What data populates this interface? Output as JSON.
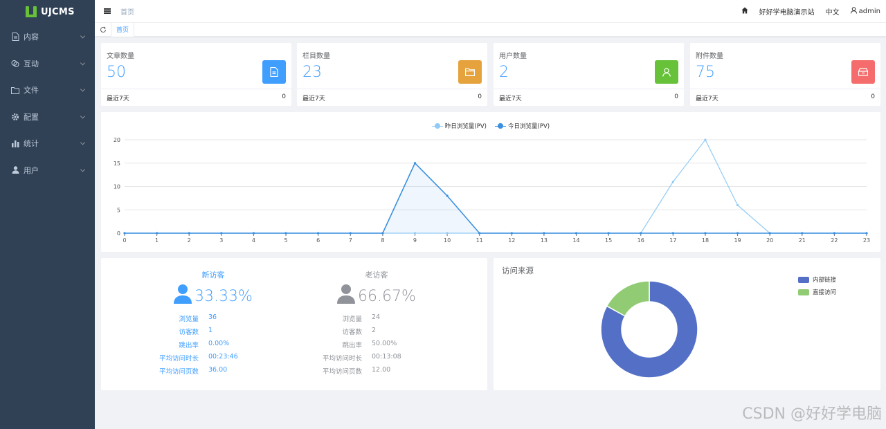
{
  "app": {
    "brand": "UJCMS"
  },
  "sidebar": {
    "items": [
      {
        "label": "内容",
        "icon": "document-icon"
      },
      {
        "label": "互动",
        "icon": "chat-icon"
      },
      {
        "label": "文件",
        "icon": "folder-icon"
      },
      {
        "label": "配置",
        "icon": "gear-icon"
      },
      {
        "label": "统计",
        "icon": "bar-chart-icon"
      },
      {
        "label": "用户",
        "icon": "user-icon"
      }
    ]
  },
  "header": {
    "breadcrumb": "首页",
    "site_name": "好好学电脑演示站",
    "language": "中文",
    "username": "admin"
  },
  "tabs": {
    "active": "首页"
  },
  "stats": [
    {
      "title": "文章数量",
      "value": "50",
      "footer_label": "最近7天",
      "footer_value": "0",
      "color": "#409eff",
      "icon": "document-icon"
    },
    {
      "title": "栏目数量",
      "value": "23",
      "footer_label": "最近7天",
      "footer_value": "0",
      "color": "#e6a23c",
      "icon": "folder-icon"
    },
    {
      "title": "用户数量",
      "value": "2",
      "footer_label": "最近7天",
      "footer_value": "0",
      "color": "#67c23a",
      "icon": "user-icon"
    },
    {
      "title": "附件数量",
      "value": "75",
      "footer_label": "最近7天",
      "footer_value": "0",
      "color": "#f56c6c",
      "icon": "box-icon"
    }
  ],
  "chart_data": [
    {
      "type": "line",
      "x": [
        "0",
        "1",
        "2",
        "3",
        "4",
        "5",
        "6",
        "7",
        "8",
        "9",
        "10",
        "11",
        "12",
        "13",
        "14",
        "15",
        "16",
        "17",
        "18",
        "19",
        "20",
        "21",
        "22",
        "23"
      ],
      "series": [
        {
          "name": "昨日浏览量(PV)",
          "color": "#91cbf5",
          "values": [
            0,
            0,
            0,
            0,
            0,
            0,
            0,
            0,
            0,
            0,
            0,
            0,
            0,
            0,
            0,
            0,
            0,
            11,
            20,
            6,
            0,
            0,
            0,
            0
          ]
        },
        {
          "name": "今日浏览量(PV)",
          "color": "#3a90e0",
          "values": [
            0,
            0,
            0,
            0,
            0,
            0,
            0,
            0,
            0,
            15,
            8,
            0,
            0,
            0,
            0,
            0,
            0,
            0,
            0,
            0,
            0,
            0,
            0,
            0
          ]
        }
      ],
      "yticks": [
        "0",
        "5",
        "10",
        "15",
        "20"
      ],
      "ylim": [
        0,
        20
      ],
      "grid": true,
      "legend": "top-center"
    },
    {
      "type": "pie",
      "title": "访问来源",
      "slices": [
        {
          "name": "内部链接",
          "value": 83,
          "color": "#5470c6"
        },
        {
          "name": "直接访问",
          "value": 17,
          "color": "#91cc75"
        }
      ],
      "legend": "top-right"
    }
  ],
  "visitors": {
    "new": {
      "title": "新访客",
      "percent": "33.33%",
      "rows": [
        {
          "label": "浏览量",
          "value": "36"
        },
        {
          "label": "访客数",
          "value": "1"
        },
        {
          "label": "跳出率",
          "value": "0.00%"
        },
        {
          "label": "平均访问时长",
          "value": "00:23:46"
        },
        {
          "label": "平均访问页数",
          "value": "36.00"
        }
      ]
    },
    "old": {
      "title": "老访客",
      "percent": "66.67%",
      "rows": [
        {
          "label": "浏览量",
          "value": "24"
        },
        {
          "label": "访客数",
          "value": "2"
        },
        {
          "label": "跳出率",
          "value": "50.00%"
        },
        {
          "label": "平均访问时长",
          "value": "00:13:08"
        },
        {
          "label": "平均访问页数",
          "value": "12.00"
        }
      ]
    }
  },
  "watermark": "CSDN @好好学电脑"
}
